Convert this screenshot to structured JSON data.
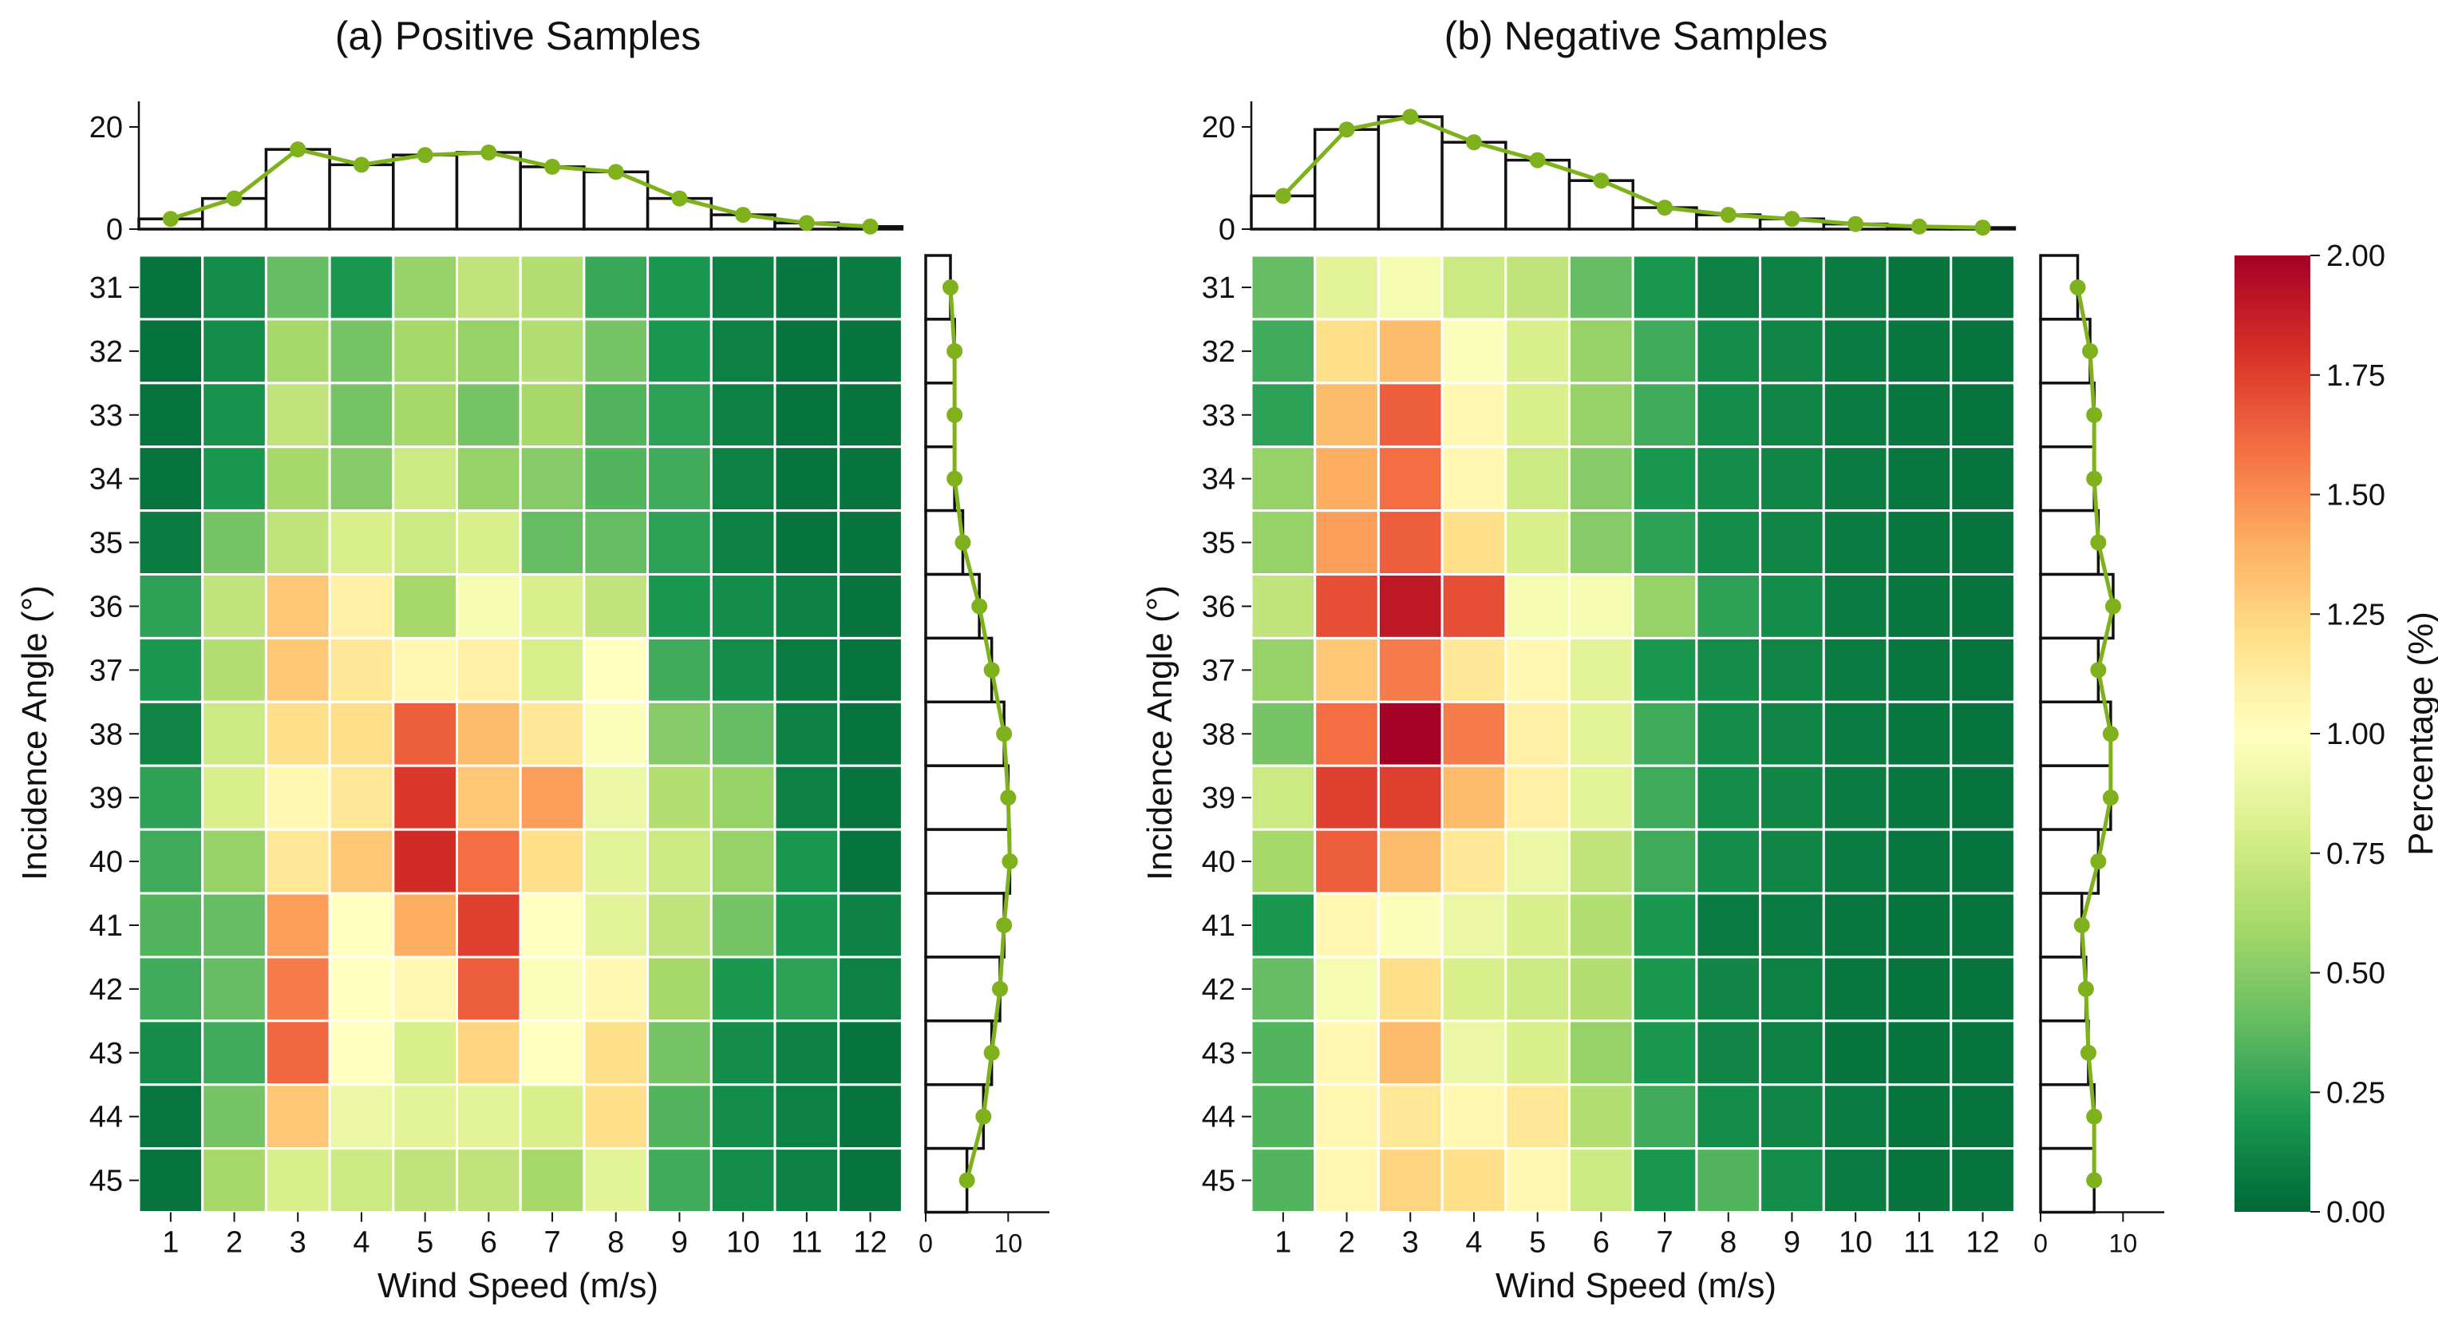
{
  "colorbar": {
    "label": "Percentage (%)",
    "min": 0,
    "max": 2,
    "ticks": [
      "0.00",
      "0.25",
      "0.50",
      "0.75",
      "1.00",
      "1.25",
      "1.50",
      "1.75",
      "2.00"
    ],
    "colors": [
      "#006837",
      "#1a9850",
      "#66bd63",
      "#a6d96a",
      "#d9ef8b",
      "#ffffbf",
      "#fee08b",
      "#fdae61",
      "#f46d43",
      "#d73027",
      "#a50026"
    ]
  },
  "accent_color": "#7fb11d",
  "chart_data": [
    {
      "type": "heatmap",
      "title": "(a) Positive Samples",
      "xlabel": "Wind Speed (m/s)",
      "ylabel": "Incidence Angle (°)",
      "x_categories": [
        "1",
        "2",
        "3",
        "4",
        "5",
        "6",
        "7",
        "8",
        "9",
        "10",
        "11",
        "12"
      ],
      "y_categories": [
        "31",
        "32",
        "33",
        "34",
        "35",
        "36",
        "37",
        "38",
        "39",
        "40",
        "41",
        "42",
        "43",
        "44",
        "45"
      ],
      "values": [
        [
          0.05,
          0.15,
          0.4,
          0.2,
          0.55,
          0.7,
          0.65,
          0.28,
          0.2,
          0.1,
          0.06,
          0.08
        ],
        [
          0.04,
          0.15,
          0.6,
          0.45,
          0.6,
          0.55,
          0.65,
          0.45,
          0.2,
          0.1,
          0.05,
          0.05
        ],
        [
          0.05,
          0.18,
          0.7,
          0.45,
          0.6,
          0.45,
          0.6,
          0.35,
          0.25,
          0.1,
          0.05,
          0.05
        ],
        [
          0.05,
          0.2,
          0.6,
          0.5,
          0.75,
          0.55,
          0.5,
          0.35,
          0.3,
          0.1,
          0.05,
          0.05
        ],
        [
          0.08,
          0.45,
          0.7,
          0.8,
          0.75,
          0.8,
          0.4,
          0.4,
          0.25,
          0.1,
          0.05,
          0.05
        ],
        [
          0.25,
          0.7,
          1.3,
          1.1,
          0.6,
          0.95,
          0.8,
          0.7,
          0.2,
          0.15,
          0.1,
          0.05
        ],
        [
          0.2,
          0.65,
          1.3,
          1.15,
          1.05,
          1.1,
          0.8,
          1.0,
          0.3,
          0.15,
          0.08,
          0.05
        ],
        [
          0.12,
          0.75,
          1.2,
          1.2,
          1.65,
          1.35,
          1.15,
          0.98,
          0.5,
          0.4,
          0.1,
          0.05
        ],
        [
          0.25,
          0.8,
          1.05,
          1.15,
          1.78,
          1.3,
          1.45,
          0.9,
          0.65,
          0.55,
          0.1,
          0.05
        ],
        [
          0.3,
          0.55,
          1.15,
          1.3,
          1.82,
          1.6,
          1.2,
          0.85,
          0.75,
          0.55,
          0.2,
          0.05
        ],
        [
          0.35,
          0.4,
          1.45,
          1.0,
          1.4,
          1.75,
          1.0,
          0.85,
          0.7,
          0.45,
          0.2,
          0.1
        ],
        [
          0.3,
          0.4,
          1.55,
          1.0,
          1.05,
          1.65,
          0.98,
          1.05,
          0.6,
          0.2,
          0.25,
          0.1
        ],
        [
          0.15,
          0.3,
          1.62,
          1.0,
          0.8,
          1.25,
          1.0,
          1.2,
          0.45,
          0.15,
          0.1,
          0.05
        ],
        [
          0.06,
          0.45,
          1.3,
          0.9,
          0.85,
          0.85,
          0.8,
          1.2,
          0.35,
          0.15,
          0.1,
          0.05
        ],
        [
          0.05,
          0.6,
          0.8,
          0.75,
          0.7,
          0.7,
          0.6,
          0.85,
          0.3,
          0.15,
          0.1,
          0.05
        ]
      ],
      "top_hist": {
        "categories": [
          "1",
          "2",
          "3",
          "4",
          "5",
          "6",
          "7",
          "8",
          "9",
          "10",
          "11",
          "12"
        ],
        "values": [
          2.0,
          6.0,
          15.6,
          12.6,
          14.5,
          15.0,
          12.2,
          11.2,
          6.0,
          2.8,
          1.2,
          0.5
        ],
        "ylim": [
          0,
          25
        ],
        "yticks": [
          "0",
          "20"
        ]
      },
      "right_hist": {
        "categories": [
          "31",
          "32",
          "33",
          "34",
          "35",
          "36",
          "37",
          "38",
          "39",
          "40",
          "41",
          "42",
          "43",
          "44",
          "45"
        ],
        "values": [
          3.0,
          3.5,
          3.5,
          3.5,
          4.5,
          6.5,
          8.0,
          9.5,
          10.0,
          10.2,
          9.5,
          9.0,
          8.0,
          7.0,
          5.0
        ],
        "xlim": [
          0,
          15
        ],
        "xticks": [
          "0",
          "10"
        ]
      }
    },
    {
      "type": "heatmap",
      "title": "(b) Negative Samples",
      "xlabel": "Wind Speed (m/s)",
      "ylabel": "Incidence Angle (°)",
      "x_categories": [
        "1",
        "2",
        "3",
        "4",
        "5",
        "6",
        "7",
        "8",
        "9",
        "10",
        "11",
        "12"
      ],
      "y_categories": [
        "31",
        "32",
        "33",
        "34",
        "35",
        "36",
        "37",
        "38",
        "39",
        "40",
        "41",
        "42",
        "43",
        "44",
        "45"
      ],
      "values": [
        [
          0.4,
          0.85,
          0.95,
          0.75,
          0.7,
          0.4,
          0.2,
          0.1,
          0.1,
          0.08,
          0.05,
          0.05
        ],
        [
          0.3,
          1.2,
          1.35,
          0.98,
          0.8,
          0.55,
          0.3,
          0.15,
          0.12,
          0.08,
          0.06,
          0.05
        ],
        [
          0.25,
          1.35,
          1.65,
          1.05,
          0.8,
          0.55,
          0.3,
          0.15,
          0.12,
          0.08,
          0.06,
          0.05
        ],
        [
          0.55,
          1.4,
          1.6,
          1.05,
          0.75,
          0.5,
          0.2,
          0.15,
          0.12,
          0.08,
          0.06,
          0.05
        ],
        [
          0.55,
          1.45,
          1.65,
          1.2,
          0.8,
          0.5,
          0.25,
          0.15,
          0.12,
          0.08,
          0.06,
          0.05
        ],
        [
          0.7,
          1.7,
          1.9,
          1.7,
          0.95,
          0.95,
          0.55,
          0.25,
          0.15,
          0.08,
          0.06,
          0.05
        ],
        [
          0.55,
          1.3,
          1.55,
          1.15,
          1.05,
          0.85,
          0.2,
          0.15,
          0.12,
          0.08,
          0.06,
          0.05
        ],
        [
          0.45,
          1.6,
          2.0,
          1.55,
          1.1,
          0.85,
          0.3,
          0.15,
          0.12,
          0.08,
          0.06,
          0.05
        ],
        [
          0.75,
          1.75,
          1.75,
          1.35,
          1.1,
          0.85,
          0.3,
          0.15,
          0.12,
          0.08,
          0.06,
          0.05
        ],
        [
          0.6,
          1.65,
          1.35,
          1.15,
          0.9,
          0.7,
          0.3,
          0.15,
          0.12,
          0.08,
          0.06,
          0.05
        ],
        [
          0.2,
          1.05,
          0.98,
          0.9,
          0.8,
          0.65,
          0.2,
          0.08,
          0.08,
          0.06,
          0.05,
          0.05
        ],
        [
          0.4,
          0.95,
          1.2,
          0.8,
          0.75,
          0.65,
          0.2,
          0.12,
          0.1,
          0.06,
          0.05,
          0.05
        ],
        [
          0.35,
          1.05,
          1.35,
          0.9,
          0.8,
          0.55,
          0.2,
          0.12,
          0.1,
          0.05,
          0.05,
          0.05
        ],
        [
          0.35,
          1.05,
          1.15,
          1.05,
          1.15,
          0.65,
          0.3,
          0.15,
          0.12,
          0.08,
          0.05,
          0.05
        ],
        [
          0.35,
          1.05,
          1.25,
          1.2,
          1.05,
          0.75,
          0.2,
          0.35,
          0.15,
          0.08,
          0.05,
          0.05
        ]
      ],
      "top_hist": {
        "categories": [
          "1",
          "2",
          "3",
          "4",
          "5",
          "6",
          "7",
          "8",
          "9",
          "10",
          "11",
          "12"
        ],
        "values": [
          6.5,
          19.5,
          22.0,
          17.0,
          13.5,
          9.5,
          4.2,
          2.8,
          2.0,
          1.0,
          0.5,
          0.3
        ],
        "ylim": [
          0,
          25
        ],
        "yticks": [
          "0",
          "20"
        ]
      },
      "right_hist": {
        "categories": [
          "31",
          "32",
          "33",
          "34",
          "35",
          "36",
          "37",
          "38",
          "39",
          "40",
          "41",
          "42",
          "43",
          "44",
          "45"
        ],
        "values": [
          4.5,
          6.0,
          6.5,
          6.5,
          7.0,
          8.8,
          7.0,
          8.5,
          8.5,
          7.0,
          5.0,
          5.5,
          5.8,
          6.5,
          6.5
        ],
        "xlim": [
          0,
          15
        ],
        "xticks": [
          "0",
          "10"
        ]
      }
    }
  ]
}
